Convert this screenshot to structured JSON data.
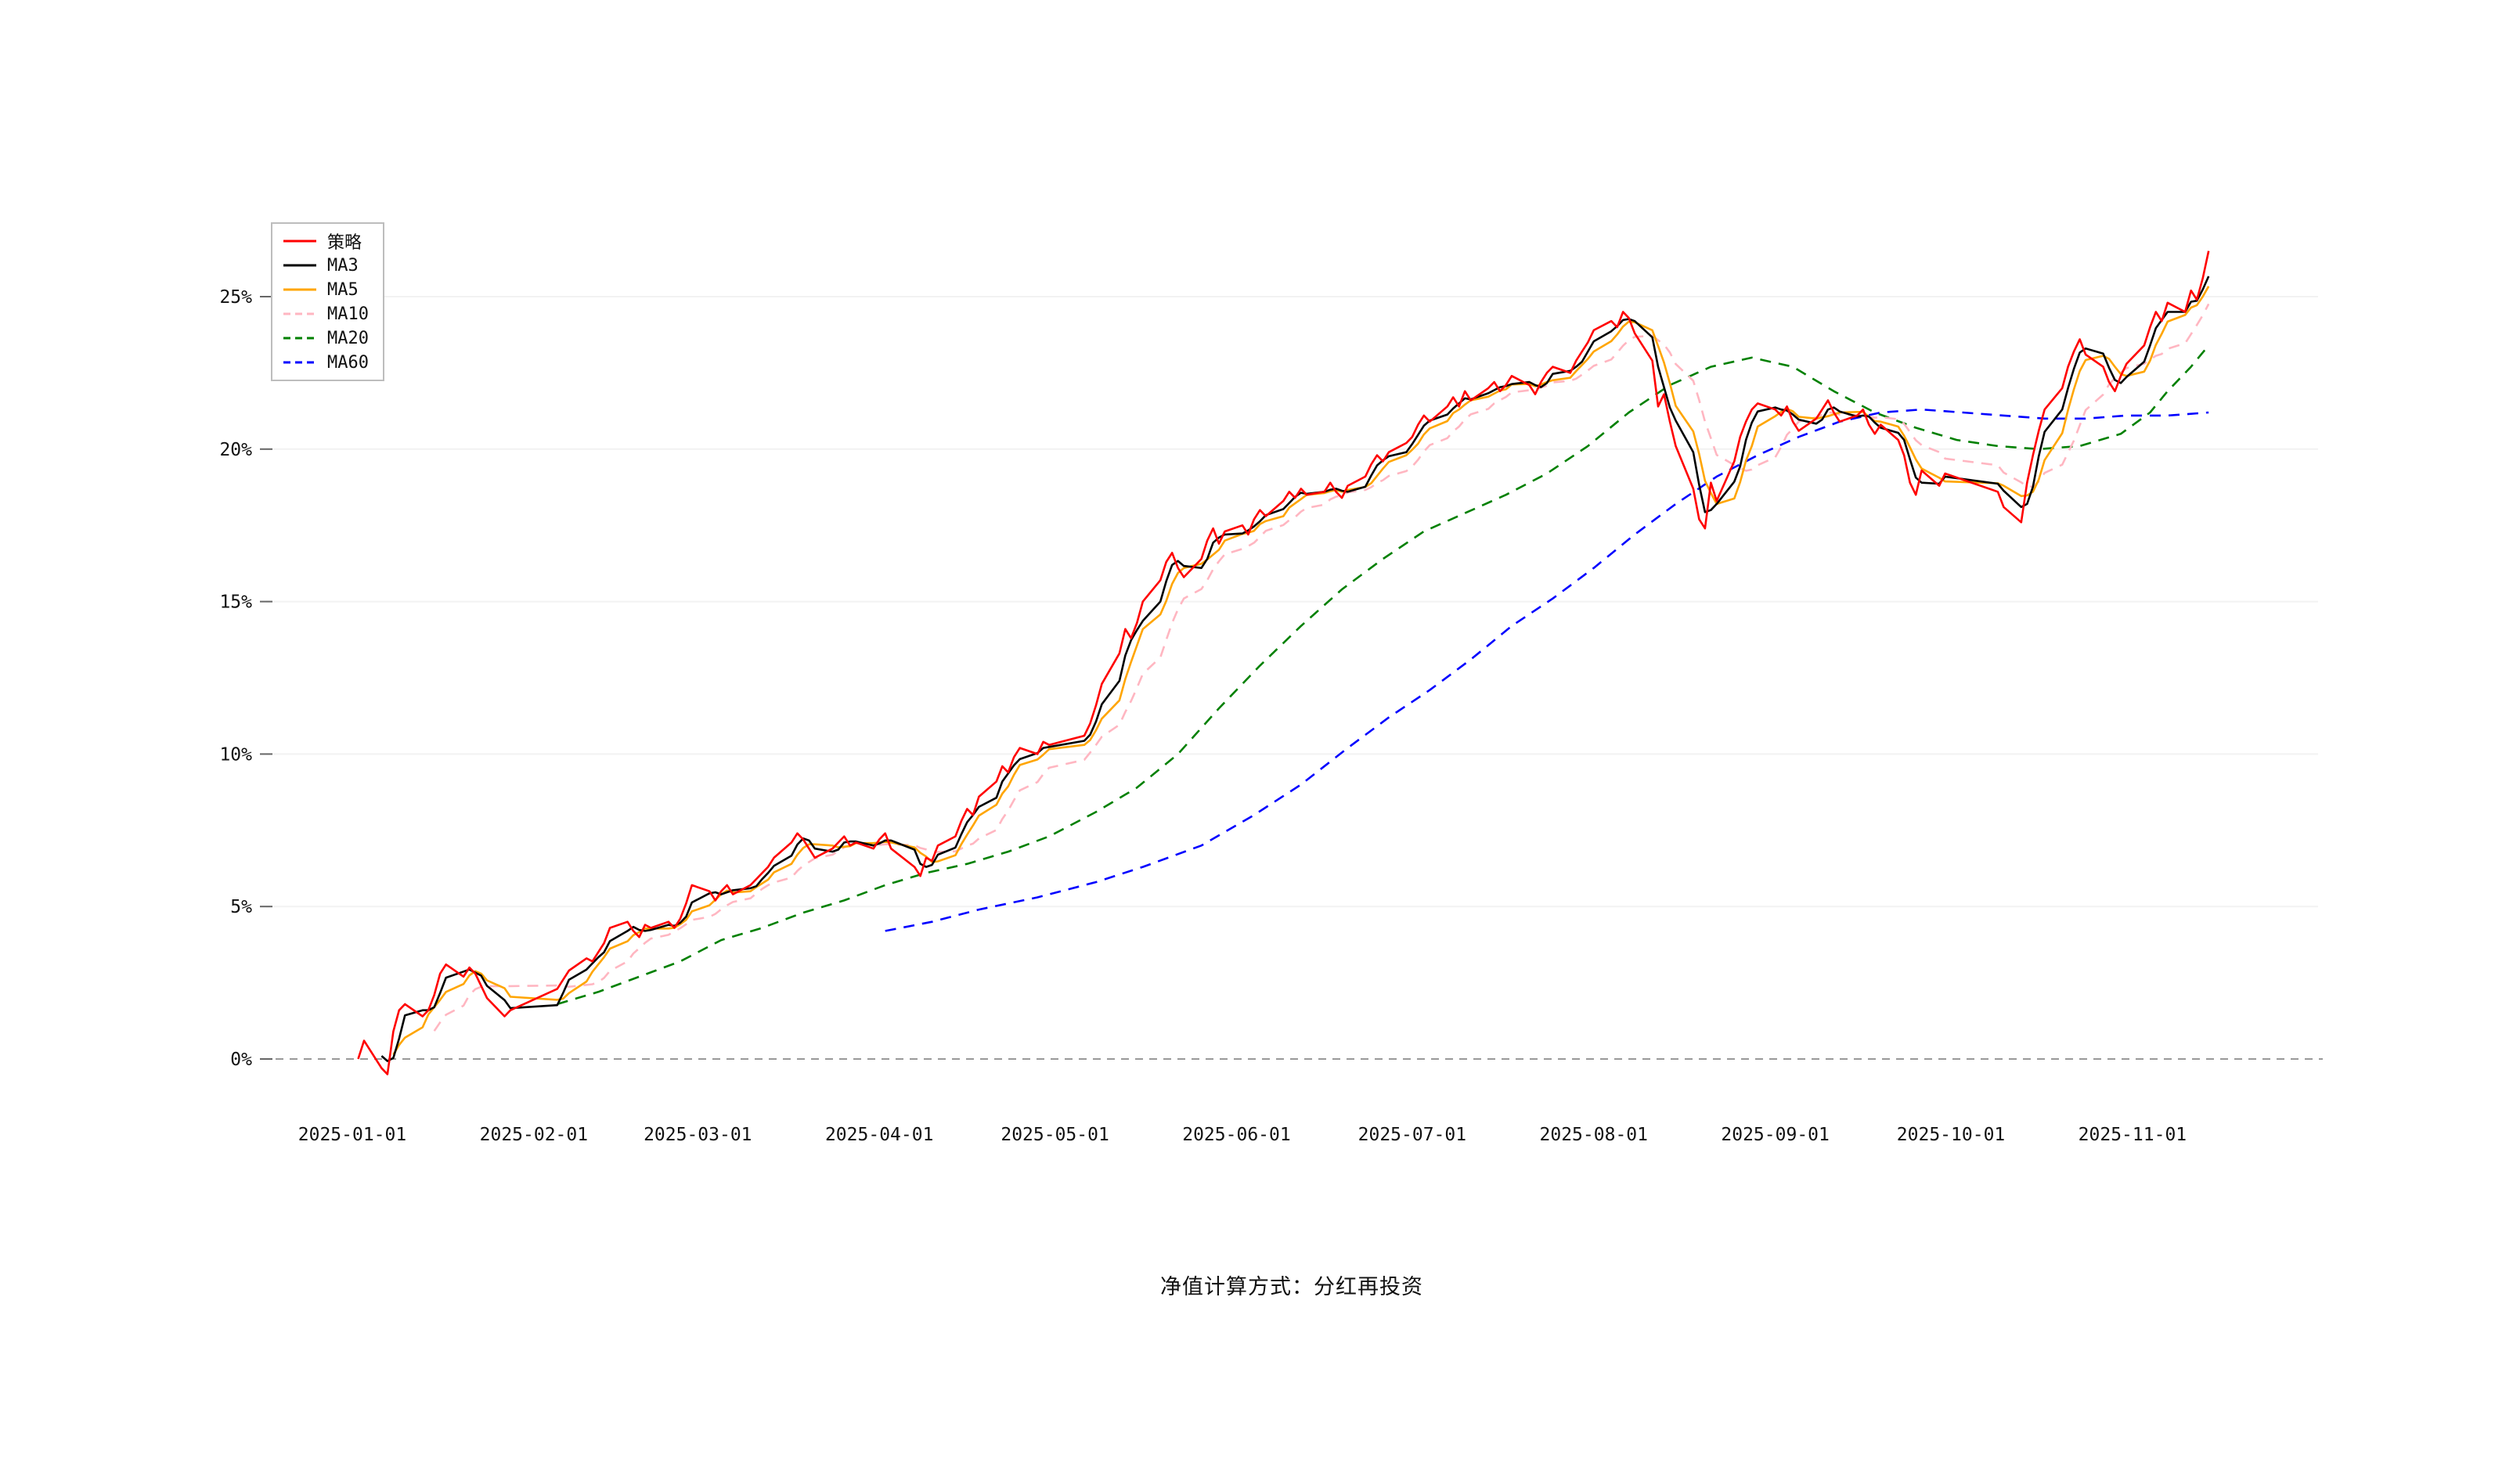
{
  "page": {
    "background": "#ffffff"
  },
  "caption": "净值计算方式：分红再投资",
  "chart_data": {
    "type": "line",
    "title": "",
    "xlabel": "",
    "ylabel": "",
    "x_unit": "date",
    "x_range": [
      "2025-01-02",
      "2025-11-14"
    ],
    "ylim": [
      -2,
      28
    ],
    "grid": "horizontal-light",
    "zero_line": {
      "style": "dashed",
      "color": "#999999"
    },
    "legend_position": "top-left",
    "y_ticks": [
      {
        "value": 0,
        "label": "0%"
      },
      {
        "value": 5,
        "label": "5%"
      },
      {
        "value": 10,
        "label": "10%"
      },
      {
        "value": 15,
        "label": "15%"
      },
      {
        "value": 20,
        "label": "20%"
      },
      {
        "value": 25,
        "label": "25%"
      }
    ],
    "x_ticks": [
      "2025-01-01",
      "2025-02-01",
      "2025-03-01",
      "2025-04-01",
      "2025-05-01",
      "2025-06-01",
      "2025-07-01",
      "2025-08-01",
      "2025-09-01",
      "2025-10-01",
      "2025-11-01"
    ],
    "series": [
      {
        "name": "策略",
        "slug": "strategy",
        "color": "#ff0000",
        "line": "solid",
        "data": "strategy_points"
      },
      {
        "name": "MA3",
        "slug": "ma3",
        "color": "#000000",
        "line": "solid",
        "moving_average_window": 3
      },
      {
        "name": "MA5",
        "slug": "ma5",
        "color": "#ffa500",
        "line": "solid",
        "moving_average_window": 5
      },
      {
        "name": "MA10",
        "slug": "ma10",
        "color": "#ffb6c1",
        "line": "dashed",
        "moving_average_window": 10
      },
      {
        "name": "MA20",
        "slug": "ma20",
        "color": "#008000",
        "line": "dashed",
        "moving_average_window": 20,
        "points": [
          [
            "2025-02-05",
            1.8
          ],
          [
            "2025-02-12",
            2.2
          ],
          [
            "2025-02-19",
            2.7
          ],
          [
            "2025-02-26",
            3.2
          ],
          [
            "2025-03-05",
            3.9
          ],
          [
            "2025-03-12",
            4.3
          ],
          [
            "2025-03-19",
            4.8
          ],
          [
            "2025-03-26",
            5.2
          ],
          [
            "2025-04-02",
            5.7
          ],
          [
            "2025-04-09",
            6.1
          ],
          [
            "2025-04-16",
            6.4
          ],
          [
            "2025-04-23",
            6.8
          ],
          [
            "2025-04-30",
            7.3
          ],
          [
            "2025-05-08",
            8.1
          ],
          [
            "2025-05-15",
            8.9
          ],
          [
            "2025-05-22",
            10.0
          ],
          [
            "2025-05-29",
            11.5
          ],
          [
            "2025-06-05",
            12.9
          ],
          [
            "2025-06-12",
            14.2
          ],
          [
            "2025-06-19",
            15.4
          ],
          [
            "2025-06-26",
            16.4
          ],
          [
            "2025-07-03",
            17.3
          ],
          [
            "2025-07-10",
            17.9
          ],
          [
            "2025-07-17",
            18.5
          ],
          [
            "2025-07-24",
            19.2
          ],
          [
            "2025-07-31",
            20.1
          ],
          [
            "2025-08-07",
            21.2
          ],
          [
            "2025-08-14",
            22.1
          ],
          [
            "2025-08-21",
            22.7
          ],
          [
            "2025-08-28",
            23.0
          ],
          [
            "2025-09-04",
            22.7
          ],
          [
            "2025-09-11",
            21.9
          ],
          [
            "2025-09-18",
            21.2
          ],
          [
            "2025-09-25",
            20.7
          ],
          [
            "2025-10-02",
            20.3
          ],
          [
            "2025-10-09",
            20.1
          ],
          [
            "2025-10-16",
            20.0
          ],
          [
            "2025-10-23",
            20.1
          ],
          [
            "2025-10-30",
            20.5
          ],
          [
            "2025-11-04",
            21.2
          ],
          [
            "2025-11-07",
            21.9
          ],
          [
            "2025-11-11",
            22.7
          ],
          [
            "2025-11-14",
            23.4
          ]
        ]
      },
      {
        "name": "MA60",
        "slug": "ma60",
        "color": "#0000ff",
        "line": "dashed",
        "moving_average_window": 60,
        "points": [
          [
            "2025-04-02",
            4.2
          ],
          [
            "2025-04-10",
            4.5
          ],
          [
            "2025-04-18",
            4.9
          ],
          [
            "2025-04-28",
            5.3
          ],
          [
            "2025-05-08",
            5.8
          ],
          [
            "2025-05-16",
            6.3
          ],
          [
            "2025-05-26",
            7.0
          ],
          [
            "2025-06-04",
            8.0
          ],
          [
            "2025-06-12",
            9.0
          ],
          [
            "2025-06-20",
            10.2
          ],
          [
            "2025-06-27",
            11.2
          ],
          [
            "2025-07-04",
            12.1
          ],
          [
            "2025-07-11",
            13.1
          ],
          [
            "2025-07-18",
            14.2
          ],
          [
            "2025-07-25",
            15.1
          ],
          [
            "2025-08-01",
            16.1
          ],
          [
            "2025-08-08",
            17.2
          ],
          [
            "2025-08-15",
            18.2
          ],
          [
            "2025-08-22",
            19.1
          ],
          [
            "2025-08-29",
            19.8
          ],
          [
            "2025-09-05",
            20.4
          ],
          [
            "2025-09-12",
            20.9
          ],
          [
            "2025-09-19",
            21.2
          ],
          [
            "2025-09-26",
            21.3
          ],
          [
            "2025-10-03",
            21.2
          ],
          [
            "2025-10-10",
            21.1
          ],
          [
            "2025-10-17",
            21.0
          ],
          [
            "2025-10-24",
            21.0
          ],
          [
            "2025-10-31",
            21.1
          ],
          [
            "2025-11-07",
            21.1
          ],
          [
            "2025-11-14",
            21.2
          ]
        ]
      }
    ],
    "strategy_points": [
      [
        "2025-01-02",
        0.0
      ],
      [
        "2025-01-03",
        0.6
      ],
      [
        "2025-01-06",
        -0.3
      ],
      [
        "2025-01-07",
        -0.5
      ],
      [
        "2025-01-08",
        0.9
      ],
      [
        "2025-01-09",
        1.6
      ],
      [
        "2025-01-10",
        1.8
      ],
      [
        "2025-01-13",
        1.4
      ],
      [
        "2025-01-14",
        1.6
      ],
      [
        "2025-01-15",
        2.1
      ],
      [
        "2025-01-16",
        2.8
      ],
      [
        "2025-01-17",
        3.1
      ],
      [
        "2025-01-20",
        2.7
      ],
      [
        "2025-01-21",
        3.0
      ],
      [
        "2025-01-22",
        2.8
      ],
      [
        "2025-01-23",
        2.4
      ],
      [
        "2025-01-24",
        2.0
      ],
      [
        "2025-01-27",
        1.4
      ],
      [
        "2025-01-28",
        1.6
      ],
      [
        "2025-02-05",
        2.3
      ],
      [
        "2025-02-06",
        2.6
      ],
      [
        "2025-02-07",
        2.9
      ],
      [
        "2025-02-10",
        3.3
      ],
      [
        "2025-02-11",
        3.2
      ],
      [
        "2025-02-12",
        3.5
      ],
      [
        "2025-02-13",
        3.8
      ],
      [
        "2025-02-14",
        4.3
      ],
      [
        "2025-02-17",
        4.5
      ],
      [
        "2025-02-18",
        4.2
      ],
      [
        "2025-02-19",
        4.0
      ],
      [
        "2025-02-20",
        4.4
      ],
      [
        "2025-02-21",
        4.3
      ],
      [
        "2025-02-24",
        4.5
      ],
      [
        "2025-02-25",
        4.3
      ],
      [
        "2025-02-26",
        4.6
      ],
      [
        "2025-02-27",
        5.1
      ],
      [
        "2025-02-28",
        5.7
      ],
      [
        "2025-03-03",
        5.5
      ],
      [
        "2025-03-04",
        5.2
      ],
      [
        "2025-03-05",
        5.5
      ],
      [
        "2025-03-06",
        5.7
      ],
      [
        "2025-03-07",
        5.4
      ],
      [
        "2025-03-10",
        5.7
      ],
      [
        "2025-03-11",
        5.9
      ],
      [
        "2025-03-12",
        6.1
      ],
      [
        "2025-03-13",
        6.3
      ],
      [
        "2025-03-14",
        6.6
      ],
      [
        "2025-03-17",
        7.1
      ],
      [
        "2025-03-18",
        7.4
      ],
      [
        "2025-03-19",
        7.2
      ],
      [
        "2025-03-20",
        6.9
      ],
      [
        "2025-03-21",
        6.6
      ],
      [
        "2025-03-24",
        6.9
      ],
      [
        "2025-03-25",
        7.1
      ],
      [
        "2025-03-26",
        7.3
      ],
      [
        "2025-03-27",
        7.0
      ],
      [
        "2025-03-28",
        7.1
      ],
      [
        "2025-03-31",
        6.9
      ],
      [
        "2025-04-01",
        7.2
      ],
      [
        "2025-04-02",
        7.4
      ],
      [
        "2025-04-03",
        6.9
      ],
      [
        "2025-04-07",
        6.3
      ],
      [
        "2025-04-08",
        6.0
      ],
      [
        "2025-04-09",
        6.6
      ],
      [
        "2025-04-10",
        6.5
      ],
      [
        "2025-04-11",
        7.0
      ],
      [
        "2025-04-14",
        7.3
      ],
      [
        "2025-04-15",
        7.8
      ],
      [
        "2025-04-16",
        8.2
      ],
      [
        "2025-04-17",
        8.0
      ],
      [
        "2025-04-18",
        8.6
      ],
      [
        "2025-04-21",
        9.1
      ],
      [
        "2025-04-22",
        9.6
      ],
      [
        "2025-04-23",
        9.4
      ],
      [
        "2025-04-24",
        9.9
      ],
      [
        "2025-04-25",
        10.2
      ],
      [
        "2025-04-28",
        10.0
      ],
      [
        "2025-04-29",
        10.4
      ],
      [
        "2025-04-30",
        10.3
      ],
      [
        "2025-05-06",
        10.6
      ],
      [
        "2025-05-07",
        11.0
      ],
      [
        "2025-05-08",
        11.6
      ],
      [
        "2025-05-09",
        12.3
      ],
      [
        "2025-05-12",
        13.3
      ],
      [
        "2025-05-13",
        14.1
      ],
      [
        "2025-05-14",
        13.8
      ],
      [
        "2025-05-15",
        14.3
      ],
      [
        "2025-05-16",
        15.0
      ],
      [
        "2025-05-19",
        15.7
      ],
      [
        "2025-05-20",
        16.3
      ],
      [
        "2025-05-21",
        16.6
      ],
      [
        "2025-05-22",
        16.1
      ],
      [
        "2025-05-23",
        15.8
      ],
      [
        "2025-05-26",
        16.4
      ],
      [
        "2025-05-27",
        17.0
      ],
      [
        "2025-05-28",
        17.4
      ],
      [
        "2025-05-29",
        16.9
      ],
      [
        "2025-05-30",
        17.3
      ],
      [
        "2025-06-02",
        17.5
      ],
      [
        "2025-06-03",
        17.2
      ],
      [
        "2025-06-04",
        17.7
      ],
      [
        "2025-06-05",
        18.0
      ],
      [
        "2025-06-06",
        17.8
      ],
      [
        "2025-06-09",
        18.3
      ],
      [
        "2025-06-10",
        18.6
      ],
      [
        "2025-06-11",
        18.4
      ],
      [
        "2025-06-12",
        18.7
      ],
      [
        "2025-06-13",
        18.5
      ],
      [
        "2025-06-16",
        18.6
      ],
      [
        "2025-06-17",
        18.9
      ],
      [
        "2025-06-18",
        18.6
      ],
      [
        "2025-06-19",
        18.4
      ],
      [
        "2025-06-20",
        18.8
      ],
      [
        "2025-06-23",
        19.1
      ],
      [
        "2025-06-24",
        19.5
      ],
      [
        "2025-06-25",
        19.8
      ],
      [
        "2025-06-26",
        19.6
      ],
      [
        "2025-06-27",
        19.9
      ],
      [
        "2025-06-30",
        20.2
      ],
      [
        "2025-07-01",
        20.4
      ],
      [
        "2025-07-02",
        20.8
      ],
      [
        "2025-07-03",
        21.1
      ],
      [
        "2025-07-04",
        20.9
      ],
      [
        "2025-07-07",
        21.4
      ],
      [
        "2025-07-08",
        21.7
      ],
      [
        "2025-07-09",
        21.4
      ],
      [
        "2025-07-10",
        21.9
      ],
      [
        "2025-07-11",
        21.6
      ],
      [
        "2025-07-14",
        22.0
      ],
      [
        "2025-07-15",
        22.2
      ],
      [
        "2025-07-16",
        21.9
      ],
      [
        "2025-07-17",
        22.1
      ],
      [
        "2025-07-18",
        22.4
      ],
      [
        "2025-07-21",
        22.1
      ],
      [
        "2025-07-22",
        21.8
      ],
      [
        "2025-07-23",
        22.2
      ],
      [
        "2025-07-24",
        22.5
      ],
      [
        "2025-07-25",
        22.7
      ],
      [
        "2025-07-28",
        22.5
      ],
      [
        "2025-07-29",
        22.9
      ],
      [
        "2025-07-30",
        23.2
      ],
      [
        "2025-07-31",
        23.5
      ],
      [
        "2025-08-01",
        23.9
      ],
      [
        "2025-08-04",
        24.2
      ],
      [
        "2025-08-05",
        24.0
      ],
      [
        "2025-08-06",
        24.5
      ],
      [
        "2025-08-07",
        24.3
      ],
      [
        "2025-08-08",
        23.8
      ],
      [
        "2025-08-11",
        22.9
      ],
      [
        "2025-08-12",
        21.4
      ],
      [
        "2025-08-13",
        21.8
      ],
      [
        "2025-08-14",
        20.9
      ],
      [
        "2025-08-15",
        20.1
      ],
      [
        "2025-08-18",
        18.7
      ],
      [
        "2025-08-19",
        17.7
      ],
      [
        "2025-08-20",
        17.4
      ],
      [
        "2025-08-21",
        18.9
      ],
      [
        "2025-08-22",
        18.3
      ],
      [
        "2025-08-25",
        19.6
      ],
      [
        "2025-08-26",
        20.4
      ],
      [
        "2025-08-27",
        20.9
      ],
      [
        "2025-08-28",
        21.3
      ],
      [
        "2025-08-29",
        21.5
      ],
      [
        "2025-09-01",
        21.3
      ],
      [
        "2025-09-02",
        21.1
      ],
      [
        "2025-09-03",
        21.4
      ],
      [
        "2025-09-04",
        20.9
      ],
      [
        "2025-09-05",
        20.6
      ],
      [
        "2025-09-08",
        21.0
      ],
      [
        "2025-09-09",
        21.3
      ],
      [
        "2025-09-10",
        21.6
      ],
      [
        "2025-09-11",
        21.2
      ],
      [
        "2025-09-12",
        20.9
      ],
      [
        "2025-09-15",
        21.1
      ],
      [
        "2025-09-16",
        21.3
      ],
      [
        "2025-09-17",
        20.8
      ],
      [
        "2025-09-18",
        20.5
      ],
      [
        "2025-09-19",
        20.8
      ],
      [
        "2025-09-22",
        20.3
      ],
      [
        "2025-09-23",
        19.8
      ],
      [
        "2025-09-24",
        18.9
      ],
      [
        "2025-09-25",
        18.5
      ],
      [
        "2025-09-26",
        19.3
      ],
      [
        "2025-09-29",
        18.8
      ],
      [
        "2025-09-30",
        19.2
      ],
      [
        "2025-10-09",
        18.6
      ],
      [
        "2025-10-10",
        18.1
      ],
      [
        "2025-10-13",
        17.6
      ],
      [
        "2025-10-14",
        18.9
      ],
      [
        "2025-10-15",
        19.8
      ],
      [
        "2025-10-16",
        20.6
      ],
      [
        "2025-10-17",
        21.3
      ],
      [
        "2025-10-20",
        22.0
      ],
      [
        "2025-10-21",
        22.7
      ],
      [
        "2025-10-22",
        23.2
      ],
      [
        "2025-10-23",
        23.6
      ],
      [
        "2025-10-24",
        23.1
      ],
      [
        "2025-10-27",
        22.7
      ],
      [
        "2025-10-28",
        22.2
      ],
      [
        "2025-10-29",
        21.9
      ],
      [
        "2025-10-30",
        22.4
      ],
      [
        "2025-10-31",
        22.8
      ],
      [
        "2025-11-03",
        23.4
      ],
      [
        "2025-11-04",
        24.0
      ],
      [
        "2025-11-05",
        24.5
      ],
      [
        "2025-11-06",
        24.2
      ],
      [
        "2025-11-07",
        24.8
      ],
      [
        "2025-11-10",
        24.5
      ],
      [
        "2025-11-11",
        25.2
      ],
      [
        "2025-11-12",
        24.9
      ],
      [
        "2025-11-13",
        25.6
      ],
      [
        "2025-11-14",
        26.5
      ]
    ]
  }
}
